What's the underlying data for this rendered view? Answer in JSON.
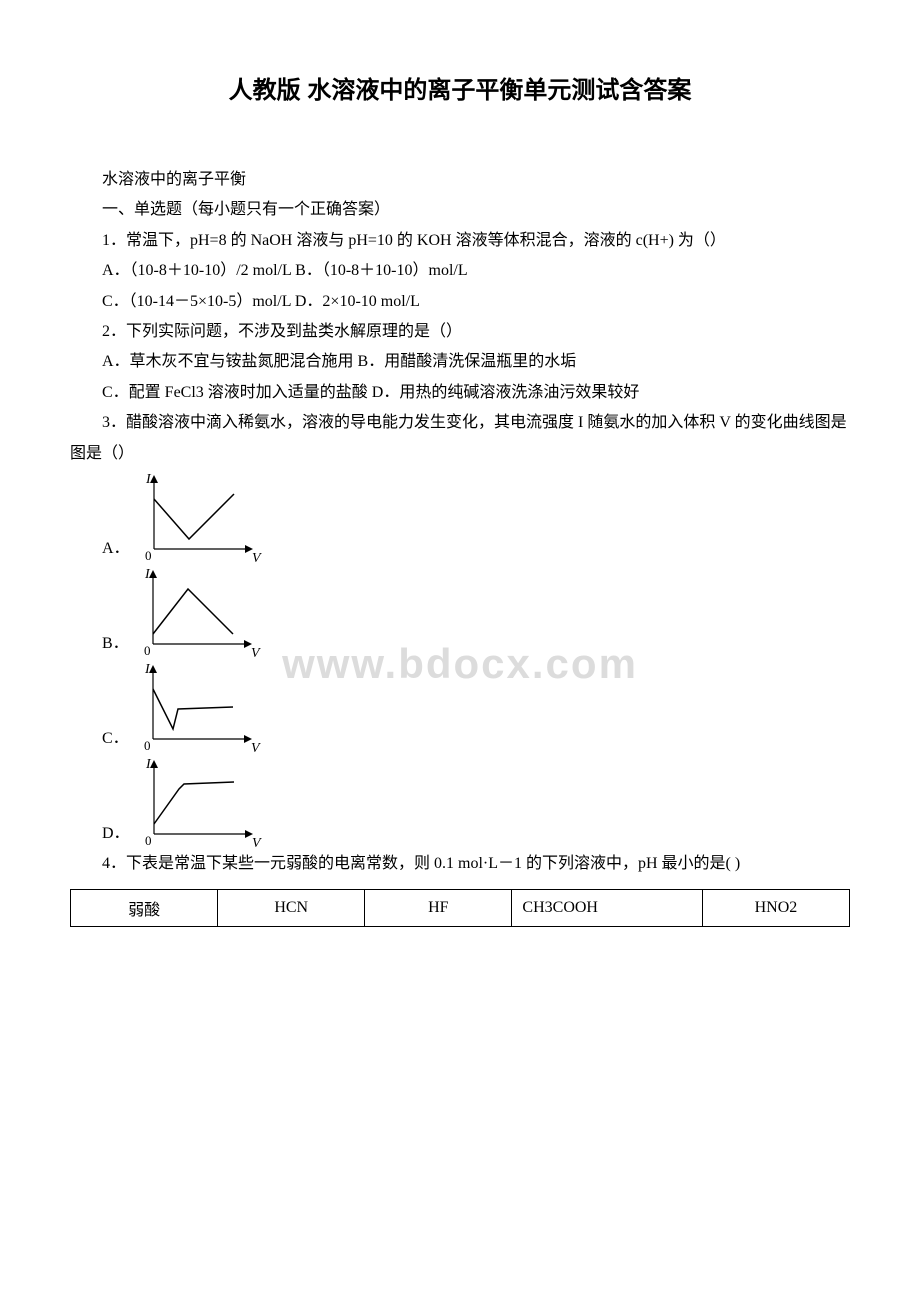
{
  "title": "人教版 水溶液中的离子平衡单元测试含答案",
  "intro": "水溶液中的离子平衡",
  "section_heading": "一、单选题（每小题只有一个正确答案）",
  "q1": {
    "stem": "1．常温下，pH=8 的 NaOH 溶液与 pH=10 的 KOH 溶液等体积混合，溶液的 c(H+) 为（）",
    "opt_ab": "A．（10-8＋10-10）/2 mol/L B．（10-8＋10-10）mol/L",
    "opt_cd": "C．（10-14－5×10-5）mol/L  D．2×10-10 mol/L"
  },
  "q2": {
    "stem": "2．下列实际问题，不涉及到盐类水解原理的是（）",
    "opt_ab": "A．草木灰不宜与铵盐氮肥混合施用 B．用醋酸清洗保温瓶里的水垢",
    "opt_cd": "C．配置 FeCl3 溶液时加入适量的盐酸 D．用热的纯碱溶液洗涤油污效果较好"
  },
  "q3": {
    "stem": "3．醋酸溶液中滴入稀氨水，溶液的导电能力发生变化，其电流强度 I 随氨水的加入体积 V 的变化曲线图是图是（）",
    "labels": {
      "a": "A．",
      "b": "B．",
      "c": "C．",
      "d": "D．"
    },
    "axis_y": "I",
    "axis_x": "V",
    "graph": {
      "width": 130,
      "height": 95,
      "axis_color": "#000000",
      "curve_color": "#000000",
      "label_fontsize": 14,
      "curves": {
        "a": [
          [
            20,
            30
          ],
          [
            55,
            70
          ],
          [
            100,
            25
          ]
        ],
        "b": [
          [
            20,
            70
          ],
          [
            55,
            25
          ],
          [
            100,
            70
          ]
        ],
        "c": [
          [
            20,
            30
          ],
          [
            40,
            70
          ],
          [
            45,
            50
          ],
          [
            100,
            48
          ]
        ],
        "d": [
          [
            20,
            70
          ],
          [
            45,
            35
          ],
          [
            50,
            30
          ],
          [
            100,
            28
          ]
        ]
      }
    }
  },
  "q4": {
    "stem": "4．下表是常温下某些一元弱酸的电离常数，则 0.1 mol·L－1 的下列溶液中，pH 最小的是(    )",
    "table": {
      "row_header": "弱酸",
      "cells": [
        "HCN",
        "HF",
        "CH3COOH",
        "HNO2"
      ]
    }
  },
  "watermark": "www.bdocx.com"
}
